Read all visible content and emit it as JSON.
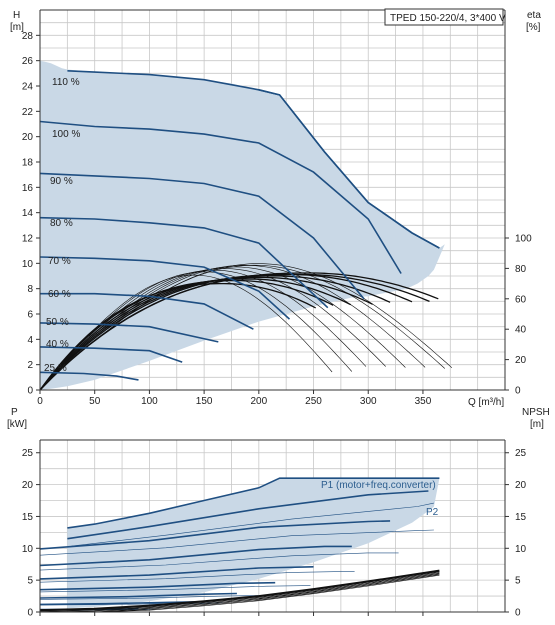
{
  "chart_data": [
    {
      "type": "line",
      "title": "TPED 150-220/4, 3*400 V",
      "xlabel": "Q [m³/h]",
      "ylabel_left": "H [m]",
      "ylabel_left_name": "H",
      "ylabel_left_unit": "[m]",
      "ylabel_right_name": "eta",
      "ylabel_right_unit": "[%]",
      "xlim": [
        0,
        425
      ],
      "ylim": [
        0,
        30
      ],
      "ylim_right": [
        0,
        250
      ],
      "x_ticks": [
        0,
        50,
        100,
        150,
        200,
        250,
        300,
        350
      ],
      "y_ticks": [
        0,
        2,
        4,
        6,
        8,
        10,
        12,
        14,
        16,
        18,
        20,
        22,
        24,
        26,
        28
      ],
      "y_right_ticks": [
        0,
        20,
        40,
        60,
        80,
        100
      ],
      "grid": true,
      "envelope": {
        "x": [
          0,
          5,
          10,
          15,
          20,
          25,
          50,
          75,
          100,
          125,
          150,
          175,
          200,
          219,
          240,
          260,
          280,
          300,
          320,
          340,
          357,
          360,
          362,
          364,
          365,
          370,
          365,
          360,
          355,
          345,
          335,
          300,
          285,
          250,
          200,
          150,
          100,
          50,
          25,
          10,
          0
        ],
        "y": [
          26.0,
          25.9,
          25.8,
          25.6,
          25.4,
          25.3,
          25.1,
          25.0,
          24.9,
          24.7,
          24.5,
          24.2,
          23.7,
          23.3,
          21.0,
          18.8,
          16.7,
          14.8,
          13.5,
          12.4,
          11.6,
          11.4,
          11.3,
          11.2,
          11.2,
          11.5,
          10.5,
          9.5,
          9.0,
          8.4,
          8.0,
          7.4,
          7.3,
          6.6,
          5.4,
          3.9,
          2.3,
          0.8,
          0.3,
          0.1,
          0
        ]
      },
      "series": [
        {
          "name": "110 %",
          "x": [
            25,
            50,
            100,
            150,
            200,
            219,
            260,
            300,
            340,
            365
          ],
          "y": [
            25.2,
            25.1,
            24.9,
            24.5,
            23.7,
            23.3,
            18.8,
            14.8,
            12.4,
            11.2
          ]
        },
        {
          "name": "100 %",
          "x": [
            0,
            50,
            100,
            150,
            200,
            250,
            300,
            330
          ],
          "y": [
            21.2,
            20.8,
            20.6,
            20.2,
            19.5,
            17.2,
            13.5,
            9.2
          ]
        },
        {
          "name": "90 %",
          "x": [
            0,
            50,
            100,
            150,
            200,
            250,
            296
          ],
          "y": [
            17.1,
            16.9,
            16.7,
            16.3,
            15.3,
            12.0,
            7.2
          ]
        },
        {
          "name": "80 %",
          "x": [
            0,
            50,
            100,
            150,
            200,
            263
          ],
          "y": [
            13.6,
            13.5,
            13.2,
            12.8,
            11.6,
            6.5
          ]
        },
        {
          "name": "70 %",
          "x": [
            0,
            50,
            100,
            150,
            200,
            228
          ],
          "y": [
            10.5,
            10.4,
            10.2,
            9.7,
            7.8,
            5.6
          ]
        },
        {
          "name": "60 %",
          "x": [
            0,
            50,
            100,
            150,
            195
          ],
          "y": [
            7.6,
            7.6,
            7.4,
            6.8,
            4.8
          ]
        },
        {
          "name": "50 %",
          "x": [
            0,
            50,
            100,
            163
          ],
          "y": [
            5.3,
            5.2,
            5.0,
            3.8
          ]
        },
        {
          "name": "40 %",
          "x": [
            0,
            50,
            100,
            130
          ],
          "y": [
            3.4,
            3.3,
            3.1,
            2.2
          ]
        },
        {
          "name": "25 %",
          "x": [
            0,
            40,
            70,
            90
          ],
          "y": [
            1.4,
            1.3,
            1.1,
            0.8
          ]
        }
      ],
      "eta_series": [
        {
          "peak_q": 168,
          "peak_eta": 70,
          "end_q": 252,
          "end_eta": 54
        },
        {
          "peak_q": 180,
          "peak_eta": 72,
          "end_q": 270,
          "end_eta": 55
        },
        {
          "peak_q": 192,
          "peak_eta": 73,
          "end_q": 287,
          "end_eta": 55
        },
        {
          "peak_q": 204,
          "peak_eta": 74,
          "end_q": 305,
          "end_eta": 56
        },
        {
          "peak_q": 216,
          "peak_eta": 75,
          "end_q": 322,
          "end_eta": 57
        },
        {
          "peak_q": 228,
          "peak_eta": 76,
          "end_q": 340,
          "end_eta": 58
        },
        {
          "peak_q": 240,
          "peak_eta": 76,
          "end_q": 357,
          "end_eta": 58
        },
        {
          "peak_q": 246,
          "peak_eta": 77,
          "end_q": 364,
          "end_eta": 60
        }
      ]
    },
    {
      "type": "line",
      "ylabel_left_name": "P",
      "ylabel_left_unit": "[kW]",
      "ylabel_right_name": "NPSH",
      "ylabel_right_unit": "[m]",
      "xlim": [
        0,
        425
      ],
      "ylim": [
        0,
        27
      ],
      "y_ticks": [
        0,
        5,
        10,
        15,
        20,
        25
      ],
      "grid": true,
      "annotations": [
        "P1 (motor+freq.converter)",
        "P2"
      ],
      "envelope": {
        "x": [
          25,
          50,
          100,
          150,
          200,
          219,
          260,
          300,
          340,
          365,
          360,
          340,
          300,
          250,
          200,
          150,
          100,
          50,
          25
        ],
        "y": [
          13.2,
          13.8,
          15.5,
          17.5,
          19.5,
          21.0,
          21.0,
          21.0,
          21.0,
          21.0,
          16.5,
          14.0,
          10.8,
          7.8,
          5.2,
          3.1,
          1.7,
          0.8,
          0.6
        ]
      },
      "series": [
        {
          "name": "P1 (motor+freq.converter)",
          "x": [
            25,
            50,
            100,
            150,
            200,
            219,
            365
          ],
          "y": [
            13.2,
            13.8,
            15.5,
            17.5,
            19.5,
            21.0,
            21.0
          ]
        },
        {
          "name": "P2",
          "x": [
            25,
            100,
            200,
            300,
            355
          ],
          "y": [
            11.5,
            13.4,
            16.2,
            18.4,
            19.0
          ]
        },
        {
          "name": "",
          "x": [
            0,
            100,
            200,
            300,
            320
          ],
          "y": [
            9.9,
            11.2,
            13.3,
            14.2,
            14.3
          ]
        },
        {
          "name": "",
          "x": [
            0,
            100,
            200,
            260,
            285
          ],
          "y": [
            7.3,
            8.2,
            9.8,
            10.3,
            10.3
          ]
        },
        {
          "name": "",
          "x": [
            0,
            100,
            200,
            250
          ],
          "y": [
            5.2,
            5.8,
            6.9,
            7.1
          ]
        },
        {
          "name": "",
          "x": [
            0,
            100,
            180,
            215
          ],
          "y": [
            3.5,
            3.9,
            4.5,
            4.6
          ]
        },
        {
          "name": "",
          "x": [
            0,
            80,
            150,
            180
          ],
          "y": [
            2.2,
            2.4,
            2.8,
            2.9
          ]
        },
        {
          "name": "",
          "x": [
            0,
            60,
            115,
            145
          ],
          "y": [
            1.2,
            1.3,
            1.5,
            1.6
          ]
        },
        {
          "name": "",
          "x": [
            0,
            50,
            90
          ],
          "y": [
            0.4,
            0.4,
            0.5
          ]
        }
      ],
      "npsh": {
        "x": [
          0,
          50,
          100,
          150,
          200,
          250,
          300,
          365
        ],
        "y": [
          0.3,
          0.5,
          1.0,
          1.7,
          2.5,
          3.6,
          4.8,
          6.5
        ]
      }
    }
  ]
}
